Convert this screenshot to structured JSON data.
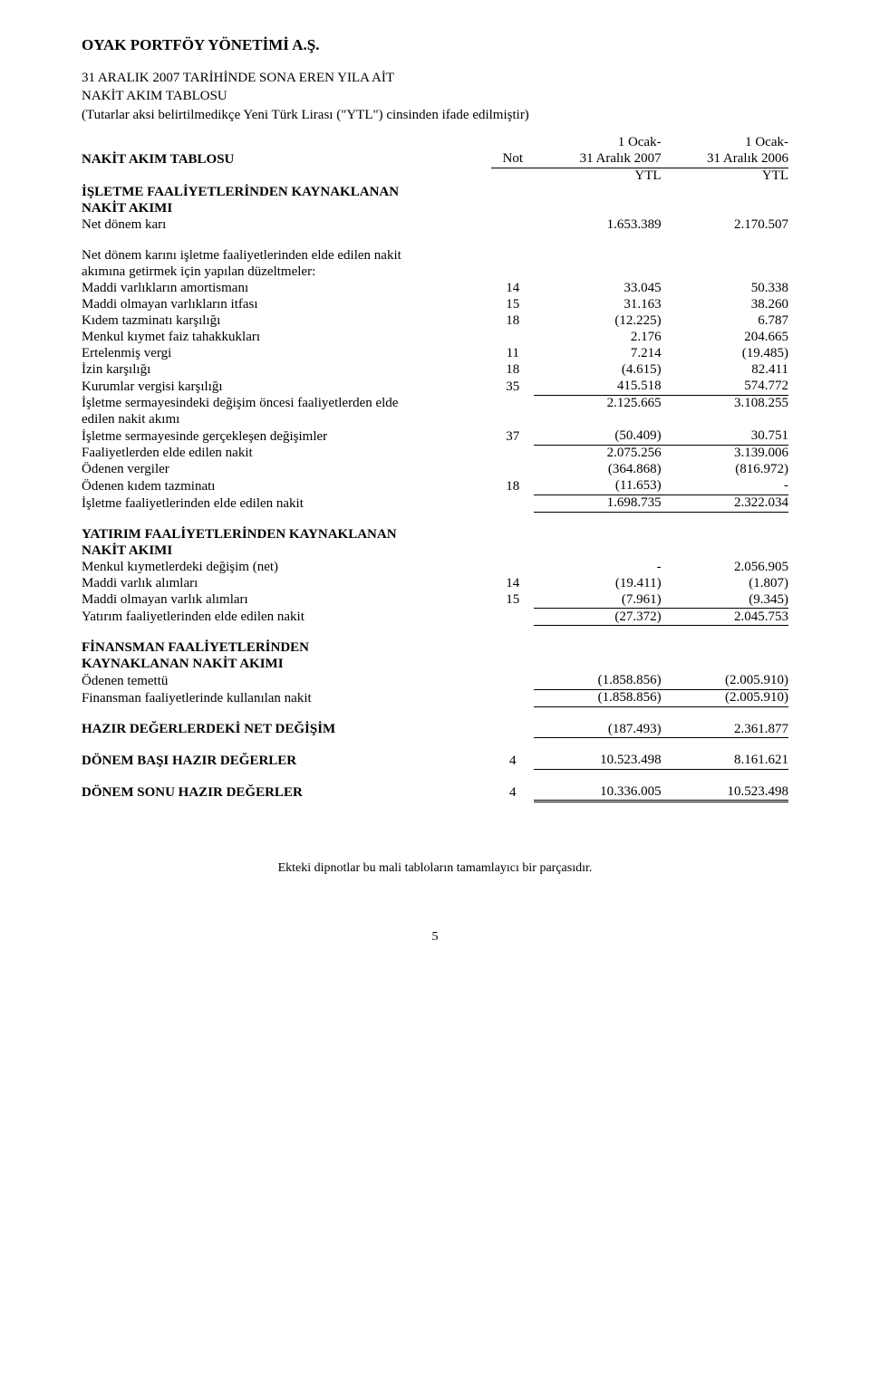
{
  "company": "OYAK PORTFÖY YÖNETİMİ A.Ş.",
  "title_line1": "31 ARALIK 2007 TARİHİNDE SONA EREN YILA AİT",
  "title_line2": "NAKİT AKIM TABLOSU",
  "title_line3": "(Tutarlar aksi belirtilmedikçe Yeni Türk Lirası (\"YTL\") cinsinden ifade edilmiştir)",
  "header": {
    "cashflow_table": "NAKİT AKIM TABLOSU",
    "note": "Not",
    "period_label": "1 Ocak-",
    "col1_date": "31 Aralık 2007",
    "col2_date": "31 Aralık 2006",
    "currency": "YTL"
  },
  "sections": {
    "operating_header1": "İŞLETME FAALİYETLERİNDEN KAYNAKLANAN",
    "operating_header2": "NAKİT AKIMI",
    "net_profit": {
      "label": "Net dönem karı",
      "v1": "1.653.389",
      "v2": "2.170.507"
    },
    "adjustments_intro1": "Net dönem karını işletme faaliyetlerinden elde edilen nakit",
    "adjustments_intro2": "akımına getirmek için yapılan düzeltmeler:",
    "rows": {
      "dep": {
        "label": "Maddi varlıkların amortismanı",
        "note": "14",
        "v1": "33.045",
        "v2": "50.338"
      },
      "amort": {
        "label": "Maddi olmayan varlıkların itfası",
        "note": "15",
        "v1": "31.163",
        "v2": "38.260"
      },
      "severance": {
        "label": "Kıdem tazminatı karşılığı",
        "note": "18",
        "v1": "(12.225)",
        "v2": "6.787"
      },
      "interest_acc": {
        "label": "Menkul kıymet faiz tahakkukları",
        "note": "",
        "v1": "2.176",
        "v2": "204.665"
      },
      "deferred_tax": {
        "label": "Ertelenmiş vergi",
        "note": "11",
        "v1": "7.214",
        "v2": "(19.485)"
      },
      "leave": {
        "label": "İzin karşılığı",
        "note": "18",
        "v1": "(4.615)",
        "v2": "82.411"
      },
      "tax_prov": {
        "label": "Kurumlar vergisi karşılığı",
        "note": "35",
        "v1": "415.518",
        "v2": "574.772"
      }
    },
    "before_wc1": {
      "label1": "İşletme sermayesindeki değişim öncesi faaliyetlerden elde",
      "label2": "edilen nakit akımı",
      "v1": "2.125.665",
      "v2": "3.108.255"
    },
    "wc_change": {
      "label": "İşletme sermayesinde gerçekleşen değişimler",
      "note": "37",
      "v1": "(50.409)",
      "v2": "30.751"
    },
    "cash_from_act": {
      "label": "Faaliyetlerden elde edilen nakit",
      "v1": "2.075.256",
      "v2": "3.139.006"
    },
    "taxes_paid": {
      "label": "Ödenen vergiler",
      "v1": "(364.868)",
      "v2": "(816.972)"
    },
    "sev_paid": {
      "label": "Ödenen kıdem tazminatı",
      "note": "18",
      "v1": "(11.653)",
      "v2": "-"
    },
    "net_operating": {
      "label": "İşletme faaliyetlerinden elde edilen nakit",
      "v1": "1.698.735",
      "v2": "2.322.034"
    },
    "investing_header1": "YATIRIM FAALİYETLERİNDEN KAYNAKLANAN",
    "investing_header2": "NAKİT AKIMI",
    "inv_rows": {
      "securities": {
        "label": "Menkul kıymetlerdeki değişim (net)",
        "note": "",
        "v1": "-",
        "v2": "2.056.905"
      },
      "ppe": {
        "label": "Maddi varlık alımları",
        "note": "14",
        "v1": "(19.411)",
        "v2": "(1.807)"
      },
      "intangibles": {
        "label": "Maddi olmayan varlık alımları",
        "note": "15",
        "v1": "(7.961)",
        "v2": "(9.345)"
      }
    },
    "net_investing": {
      "label": "Yatırım faaliyetlerinden elde edilen nakit",
      "v1": "(27.372)",
      "v2": "2.045.753"
    },
    "financing_header1": "FİNANSMAN FAALİYETLERİNDEN",
    "financing_header2": "KAYNAKLANAN NAKİT AKIMI",
    "dividend": {
      "label": "Ödenen temettü",
      "v1": "(1.858.856)",
      "v2": "(2.005.910)"
    },
    "net_financing": {
      "label": "Finansman faaliyetlerinde kullanılan nakit",
      "v1": "(1.858.856)",
      "v2": "(2.005.910)"
    },
    "net_change": {
      "label": "HAZIR DEĞERLERDEKİ NET DEĞİŞİM",
      "v1": "(187.493)",
      "v2": "2.361.877"
    },
    "cash_begin": {
      "label": "DÖNEM BAŞI HAZIR DEĞERLER",
      "note": "4",
      "v1": "10.523.498",
      "v2": "8.161.621"
    },
    "cash_end": {
      "label": "DÖNEM SONU HAZIR DEĞERLER",
      "note": "4",
      "v1": "10.336.005",
      "v2": "10.523.498"
    }
  },
  "footer": "Ekteki dipnotlar bu mali tabloların tamamlayıcı bir parçasıdır.",
  "page_number": "5"
}
